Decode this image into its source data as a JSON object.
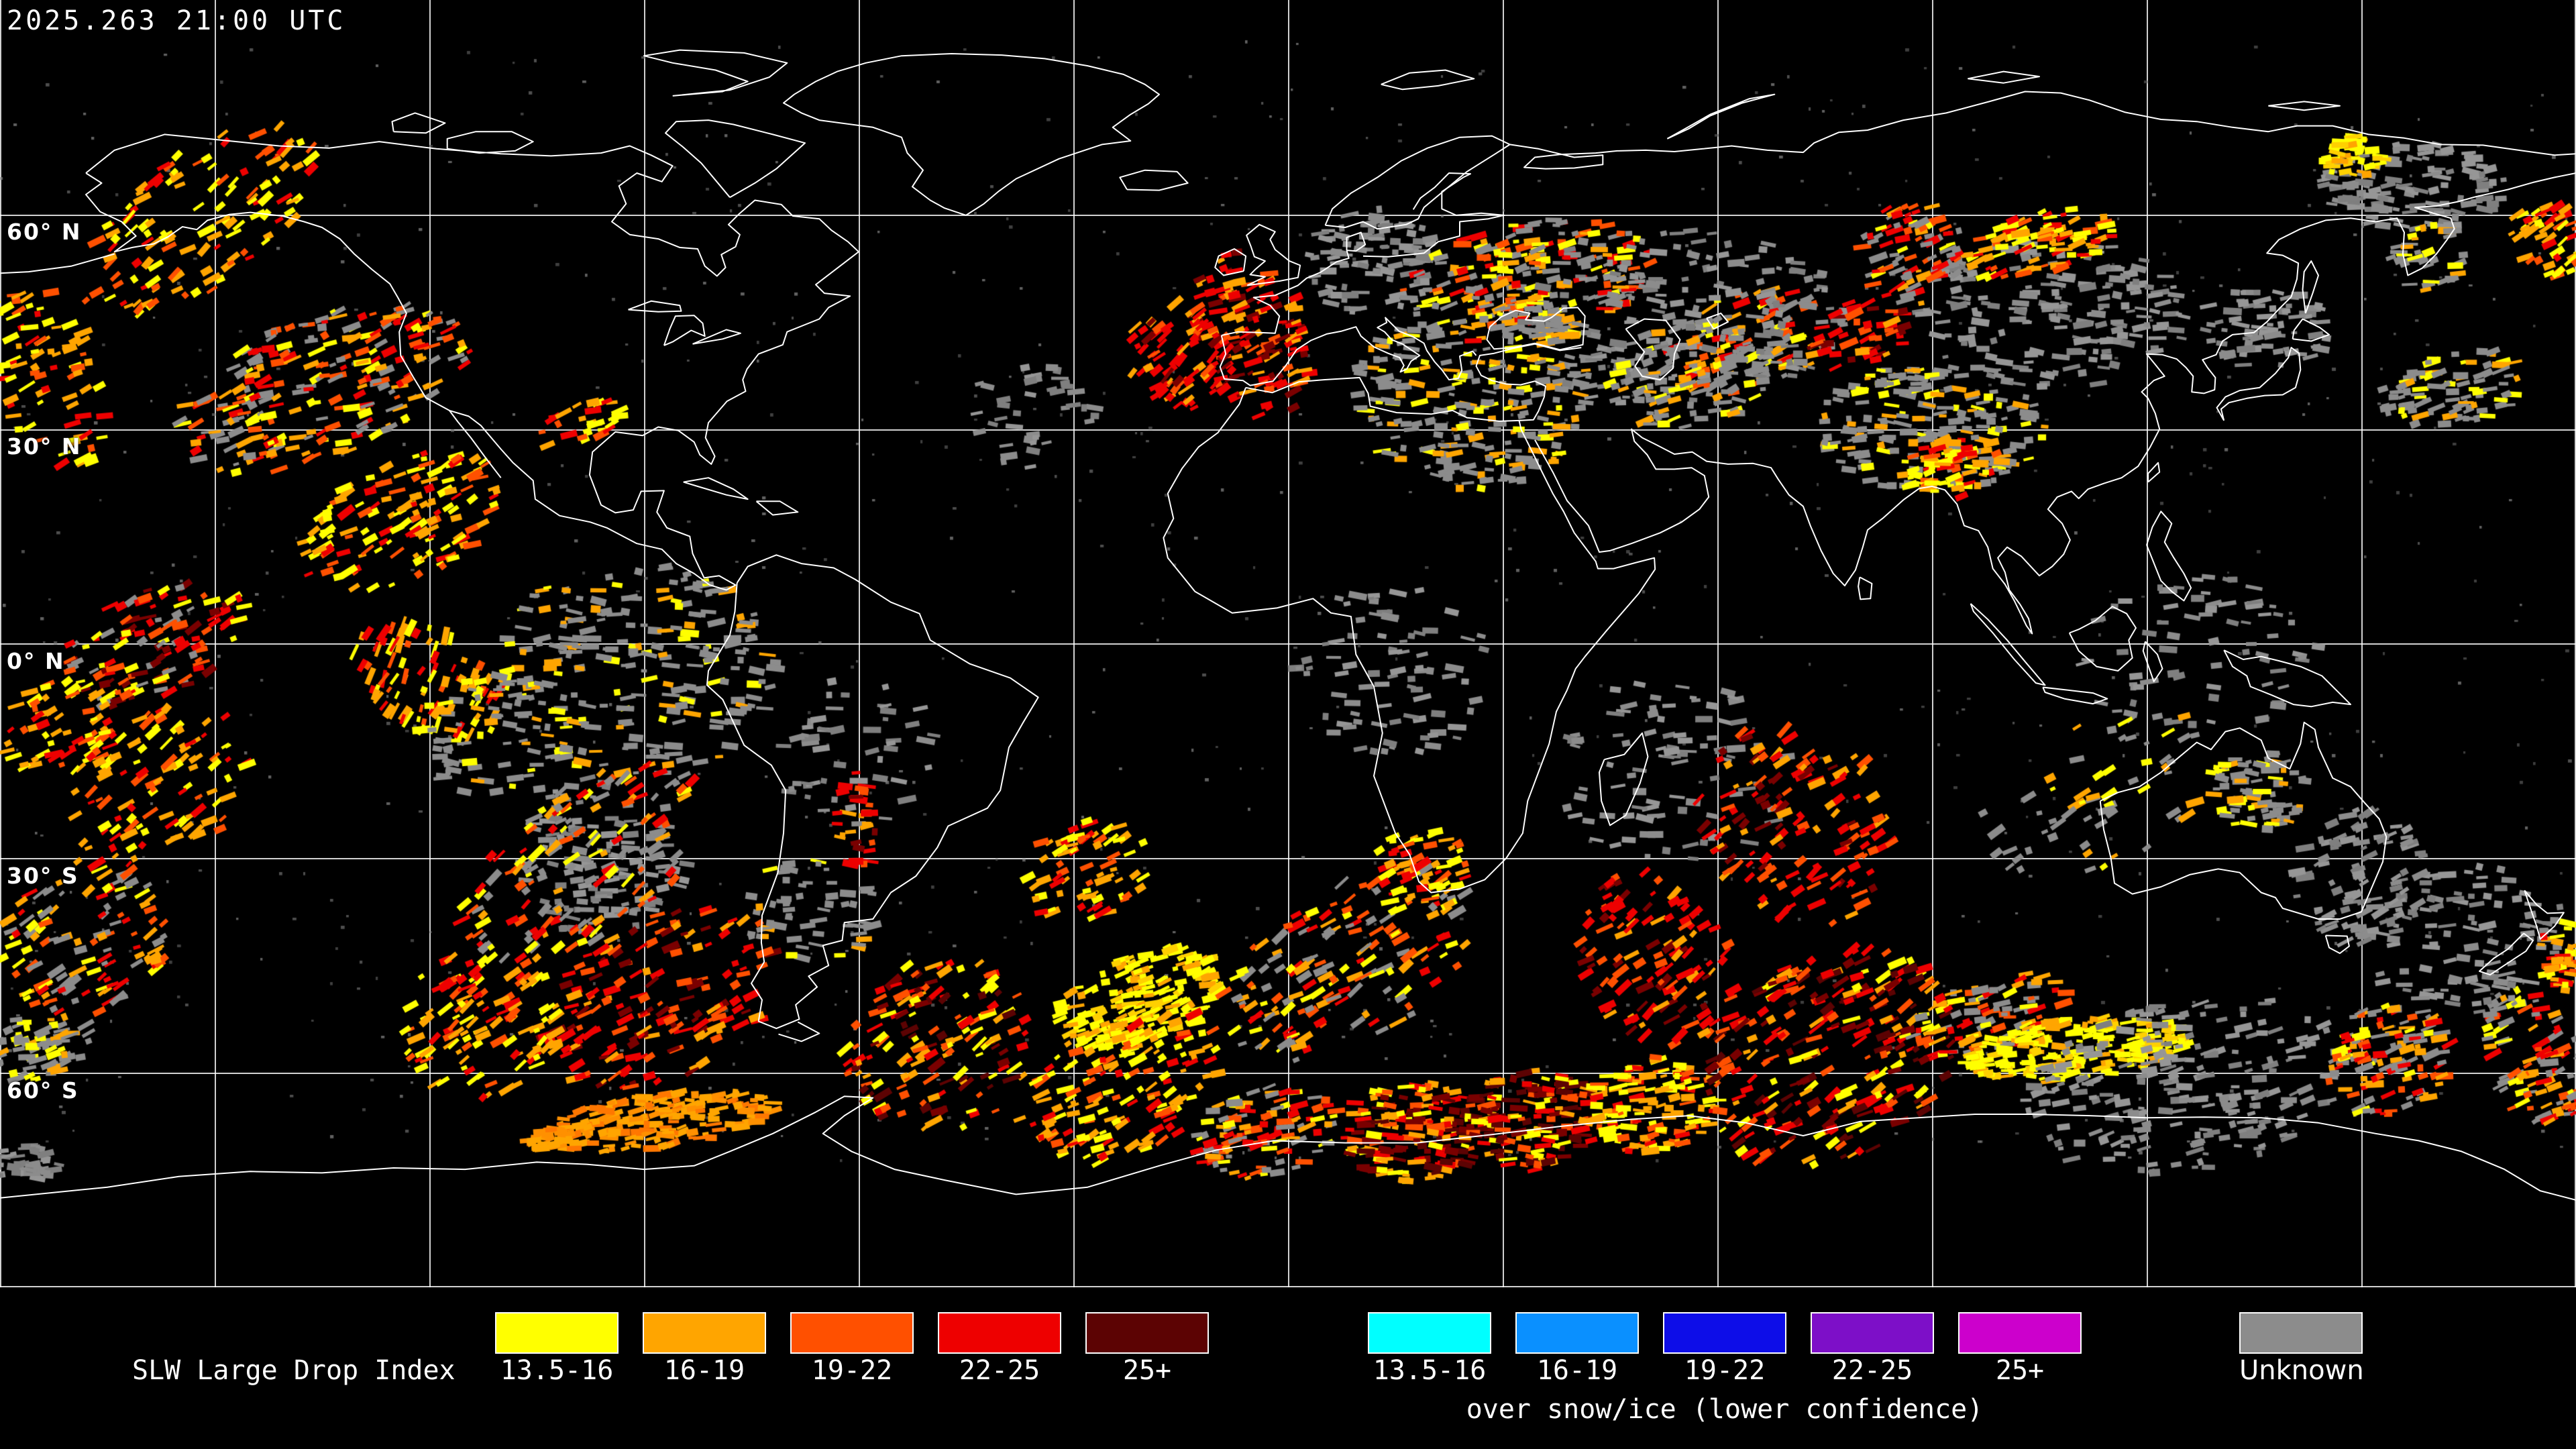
{
  "header": {
    "timestamp": "2025.263 21:00 UTC"
  },
  "map": {
    "latitude_labels": [
      "60° N",
      "30° N",
      "0° N",
      "30° S",
      "60° S"
    ],
    "grid_color": "#ffffff",
    "coastline_color": "#ffffff",
    "background_color": "#000000"
  },
  "legend": {
    "title": "SLW Large Drop Index",
    "bins": [
      {
        "label": "13.5-16",
        "color": "#ffff00"
      },
      {
        "label": "16-19",
        "color": "#ffa500"
      },
      {
        "label": "19-22",
        "color": "#ff5000"
      },
      {
        "label": "22-25",
        "color": "#ee0000"
      },
      {
        "label": "25+",
        "color": "#5c0303"
      }
    ],
    "snow_ice": {
      "caption": "over snow/ice (lower confidence)",
      "bins": [
        {
          "label": "13.5-16",
          "color": "#00ffff"
        },
        {
          "label": "16-19",
          "color": "#0a90ff"
        },
        {
          "label": "19-22",
          "color": "#0d0de8"
        },
        {
          "label": "22-25",
          "color": "#7d0fc8"
        },
        {
          "label": "25+",
          "color": "#cc00cc"
        }
      ]
    },
    "unknown": {
      "label": "Unknown",
      "color": "#8c8c8c"
    }
  },
  "palettes": {
    "warm": [
      "#ffff00",
      "#ffff00",
      "#ffa500",
      "#ffa500",
      "#ff5000",
      "#ee0000"
    ],
    "hot": [
      "#ff5000",
      "#ee0000",
      "#ee0000",
      "#ffa500",
      "#7a0000"
    ],
    "hotmaroon": [
      "#ee0000",
      "#7a0000",
      "#5c0303",
      "#ff5000",
      "#ffa500",
      "#ffff00"
    ],
    "warmgray": [
      "#ffff00",
      "#ffa500",
      "#ff5000",
      "#ee0000",
      "#8c8c8c",
      "#8c8c8c"
    ],
    "graywarm": [
      "#8c8c8c",
      "#8c8c8c",
      "#8c8c8c",
      "#8c8c8c",
      "#ffff00",
      "#ffa500"
    ],
    "gray": [
      "#8c8c8c",
      "#7f7f7f",
      "#969696"
    ],
    "sun": [
      "#ffff00",
      "#ffff00",
      "#ffff00",
      "#ffd000",
      "#ffa500"
    ],
    "orangesolid": [
      "#ffa500",
      "#ff9000",
      "#ffa500",
      "#ff7700"
    ],
    "hotgray": [
      "#ee0000",
      "#ff5000",
      "#7a0000",
      "#8c8c8c",
      "#ffff00"
    ]
  },
  "data_patches": [
    [
      480,
      580,
      470,
      210,
      -20,
      "warmgray",
      240
    ],
    [
      300,
      330,
      420,
      200,
      -35,
      "warm",
      130
    ],
    [
      70,
      560,
      150,
      300,
      -20,
      "warm",
      80
    ],
    [
      600,
      780,
      330,
      180,
      -25,
      "warm",
      140
    ],
    [
      230,
      960,
      300,
      160,
      -25,
      "hotgray",
      130
    ],
    [
      90,
      1090,
      180,
      140,
      -25,
      "warm",
      60
    ],
    [
      650,
      1020,
      150,
      260,
      -65,
      "warm",
      90
    ],
    [
      950,
      1000,
      420,
      320,
      0,
      "graywarm",
      220
    ],
    [
      900,
      1280,
      260,
      240,
      0,
      "gray",
      120
    ],
    [
      1210,
      1360,
      200,
      160,
      0,
      "graywarm",
      60
    ],
    [
      760,
      1090,
      260,
      220,
      0,
      "graywarm",
      90
    ],
    [
      870,
      635,
      130,
      60,
      -20,
      "warm",
      30
    ],
    [
      1870,
      500,
      160,
      260,
      -20,
      "hot",
      130
    ],
    [
      1760,
      530,
      150,
      170,
      -40,
      "hot",
      80
    ],
    [
      2050,
      390,
      200,
      160,
      0,
      "gray",
      100
    ],
    [
      2280,
      420,
      380,
      170,
      -10,
      "warmgray",
      220
    ],
    [
      2600,
      520,
      260,
      160,
      -20,
      "warmgray",
      110
    ],
    [
      2200,
      580,
      360,
      300,
      0,
      "graywarm",
      260
    ],
    [
      2500,
      480,
      520,
      280,
      0,
      "gray",
      200
    ],
    [
      2520,
      560,
      240,
      160,
      -10,
      "graywarm",
      110
    ],
    [
      2780,
      500,
      180,
      100,
      -15,
      "hot",
      45
    ],
    [
      3060,
      470,
      420,
      220,
      0,
      "gray",
      180
    ],
    [
      3600,
      280,
      280,
      130,
      0,
      "gray",
      120
    ],
    [
      3510,
      235,
      90,
      70,
      0,
      "sun",
      45
    ],
    [
      3040,
      365,
      240,
      90,
      -15,
      "warm",
      90
    ],
    [
      2850,
      380,
      160,
      150,
      -20,
      "warmgray",
      90
    ],
    [
      3800,
      360,
      100,
      120,
      -30,
      "warm",
      50
    ],
    [
      3620,
      380,
      120,
      110,
      -10,
      "graywarm",
      40
    ],
    [
      2880,
      640,
      340,
      190,
      0,
      "graywarm",
      200
    ],
    [
      2910,
      700,
      170,
      90,
      -10,
      "warm",
      70
    ],
    [
      3380,
      490,
      200,
      120,
      0,
      "gray",
      70
    ],
    [
      3660,
      580,
      220,
      110,
      -10,
      "graywarm",
      90
    ],
    [
      2080,
      1000,
      300,
      260,
      0,
      "gray",
      80
    ],
    [
      2500,
      1150,
      360,
      280,
      0,
      "gray",
      90
    ],
    [
      3280,
      980,
      360,
      240,
      0,
      "gray",
      70
    ],
    [
      1280,
      1120,
      240,
      220,
      0,
      "gray",
      50
    ],
    [
      230,
      1180,
      320,
      220,
      -35,
      "warm",
      110
    ],
    [
      130,
      1400,
      260,
      220,
      -30,
      "warmgray",
      120
    ],
    [
      60,
      1560,
      160,
      100,
      -15,
      "graywarm",
      80
    ],
    [
      870,
      1290,
      420,
      220,
      -35,
      "warmgray",
      150
    ],
    [
      990,
      1490,
      380,
      240,
      -25,
      "hot",
      170
    ],
    [
      720,
      1530,
      240,
      240,
      -35,
      "warm",
      120
    ],
    [
      970,
      1675,
      380,
      80,
      -8,
      "orangesolid",
      200
    ],
    [
      1285,
      1220,
      70,
      160,
      0,
      "hot",
      30
    ],
    [
      40,
      1740,
      110,
      60,
      0,
      "gray",
      40
    ],
    [
      1400,
      1560,
      280,
      260,
      -30,
      "hotmaroon",
      150
    ],
    [
      1700,
      1490,
      260,
      130,
      -20,
      "sun",
      200
    ],
    [
      1680,
      1620,
      340,
      200,
      -25,
      "warm",
      160
    ],
    [
      1890,
      1690,
      220,
      140,
      -10,
      "warmgray",
      120
    ],
    [
      2110,
      1690,
      220,
      150,
      0,
      "hotmaroon",
      160
    ],
    [
      2290,
      1670,
      200,
      150,
      0,
      "hotmaroon",
      150
    ],
    [
      2470,
      1650,
      200,
      150,
      -5,
      "warm",
      130
    ],
    [
      2010,
      1440,
      420,
      230,
      -30,
      "warmgray",
      160
    ],
    [
      2120,
      1300,
      140,
      140,
      -20,
      "warm",
      60
    ],
    [
      2470,
      1430,
      220,
      280,
      -35,
      "hot",
      120
    ],
    [
      2730,
      1580,
      400,
      300,
      -30,
      "hotmaroon",
      260
    ],
    [
      2680,
      1230,
      280,
      320,
      -35,
      "hot",
      140
    ],
    [
      2970,
      1520,
      240,
      120,
      -15,
      "warmgray",
      100
    ],
    [
      3100,
      1565,
      340,
      90,
      -5,
      "sun",
      200
    ],
    [
      3260,
      1620,
      480,
      260,
      -10,
      "gray",
      220
    ],
    [
      3560,
      1580,
      200,
      160,
      -15,
      "warmgray",
      130
    ],
    [
      3780,
      1580,
      140,
      220,
      -20,
      "warmgray",
      100
    ],
    [
      3680,
      1400,
      320,
      220,
      0,
      "gray",
      110
    ],
    [
      3370,
      1180,
      150,
      120,
      0,
      "graywarm",
      80
    ],
    [
      3520,
      1310,
      200,
      200,
      -20,
      "gray",
      90
    ],
    [
      3820,
      1420,
      60,
      130,
      0,
      "warm",
      40
    ],
    [
      3130,
      1180,
      380,
      220,
      -25,
      "graywarm",
      60
    ],
    [
      1540,
      620,
      200,
      160,
      0,
      "gray",
      40
    ],
    [
      1620,
      1300,
      200,
      150,
      -25,
      "warm",
      70
    ]
  ]
}
